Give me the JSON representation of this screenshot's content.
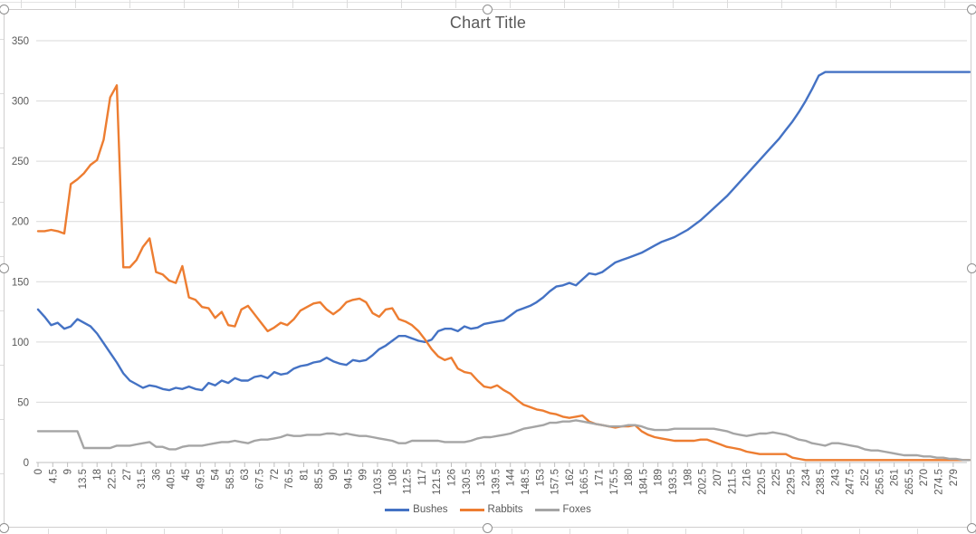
{
  "chart_data": {
    "type": "line",
    "title": "Chart Title",
    "x_start": 0,
    "x_step": 2,
    "x_tick_labels": [
      "0",
      "4.5",
      "9",
      "13.5",
      "18",
      "22.5",
      "27",
      "31.5",
      "36",
      "40.5",
      "45",
      "49.5",
      "54",
      "58.5",
      "63",
      "67.5",
      "72",
      "76.5",
      "81",
      "85.5",
      "90",
      "94.5",
      "99",
      "103.5",
      "108",
      "112.5",
      "117",
      "121.5",
      "126",
      "130.5",
      "135",
      "139.5",
      "144",
      "148.5",
      "153",
      "157.5",
      "162",
      "166.5",
      "171",
      "175.5",
      "180",
      "184.5",
      "189",
      "193.5",
      "198",
      "202.5",
      "207",
      "211.5",
      "216",
      "220.5",
      "225",
      "229.5",
      "234",
      "238.5",
      "243",
      "247.5",
      "252",
      "256.5",
      "261",
      "265.5",
      "270",
      "274.5",
      "279"
    ],
    "y_ticks": [
      0,
      50,
      100,
      150,
      200,
      250,
      300,
      350
    ],
    "ylim": [
      0,
      350
    ],
    "grid": true,
    "legend_position": "bottom",
    "series": [
      {
        "name": "Bushes",
        "color": "#4472C4",
        "values": [
          127,
          121,
          114,
          116,
          111,
          113,
          119,
          116,
          113,
          107,
          99,
          91,
          83,
          74,
          68,
          65,
          62,
          64,
          63,
          61,
          60,
          62,
          61,
          63,
          61,
          60,
          66,
          64,
          68,
          66,
          70,
          68,
          68,
          71,
          72,
          70,
          75,
          73,
          74,
          78,
          80,
          81,
          83,
          84,
          87,
          84,
          82,
          81,
          85,
          84,
          85,
          89,
          94,
          97,
          101,
          105,
          105,
          103,
          101,
          100,
          102,
          109,
          111,
          111,
          109,
          113,
          111,
          112,
          115,
          116,
          117,
          118,
          122,
          126,
          128,
          130,
          133,
          137,
          142,
          146,
          147,
          149,
          147,
          152,
          157,
          156,
          158,
          162,
          166,
          168,
          170,
          172,
          174,
          177,
          180,
          183,
          185,
          187,
          190,
          193,
          197,
          201,
          206,
          211,
          216,
          221,
          227,
          233,
          239,
          245,
          251,
          257,
          263,
          269,
          276,
          283,
          291,
          300,
          310,
          321,
          324,
          324,
          324,
          324,
          324,
          324,
          324,
          324,
          324,
          324,
          324,
          324,
          324,
          324,
          324,
          324,
          324,
          324,
          324,
          324,
          324,
          324,
          324
        ]
      },
      {
        "name": "Rabbits",
        "color": "#ED7D31",
        "values": [
          192,
          192,
          193,
          192,
          190,
          231,
          235,
          240,
          247,
          251,
          268,
          303,
          313,
          162,
          162,
          168,
          179,
          186,
          158,
          156,
          151,
          149,
          163,
          137,
          135,
          129,
          128,
          120,
          125,
          114,
          113,
          127,
          130,
          123,
          116,
          109,
          112,
          116,
          114,
          119,
          126,
          129,
          132,
          133,
          127,
          123,
          127,
          133,
          135,
          136,
          133,
          124,
          121,
          127,
          128,
          119,
          117,
          114,
          109,
          102,
          94,
          88,
          85,
          87,
          78,
          75,
          74,
          68,
          63,
          62,
          64,
          60,
          57,
          52,
          48,
          46,
          44,
          43,
          41,
          40,
          38,
          37,
          38,
          39,
          34,
          32,
          31,
          30,
          29,
          30,
          30,
          31,
          26,
          23,
          21,
          20,
          19,
          18,
          18,
          18,
          18,
          19,
          19,
          17,
          15,
          13,
          12,
          11,
          9,
          8,
          7,
          7,
          7,
          7,
          7,
          4,
          3,
          2,
          2,
          2,
          2,
          2,
          2,
          2,
          2,
          2,
          2,
          2,
          2,
          2,
          2,
          2,
          2,
          2,
          2,
          2,
          2,
          2,
          2,
          2,
          2,
          2,
          2
        ]
      },
      {
        "name": "Foxes",
        "color": "#A5A5A5",
        "values": [
          26,
          26,
          26,
          26,
          26,
          26,
          26,
          12,
          12,
          12,
          12,
          12,
          14,
          14,
          14,
          15,
          16,
          17,
          13,
          13,
          11,
          11,
          13,
          14,
          14,
          14,
          15,
          16,
          17,
          17,
          18,
          17,
          16,
          18,
          19,
          19,
          20,
          21,
          23,
          22,
          22,
          23,
          23,
          23,
          24,
          24,
          23,
          24,
          23,
          22,
          22,
          21,
          20,
          19,
          18,
          16,
          16,
          18,
          18,
          18,
          18,
          18,
          17,
          17,
          17,
          17,
          18,
          20,
          21,
          21,
          22,
          23,
          24,
          26,
          28,
          29,
          30,
          31,
          33,
          33,
          34,
          34,
          35,
          34,
          33,
          32,
          31,
          30,
          30,
          30,
          31,
          31,
          30,
          28,
          27,
          27,
          27,
          28,
          28,
          28,
          28,
          28,
          28,
          28,
          27,
          26,
          24,
          23,
          22,
          23,
          24,
          24,
          25,
          24,
          23,
          21,
          19,
          18,
          16,
          15,
          14,
          16,
          16,
          15,
          14,
          13,
          11,
          10,
          10,
          9,
          8,
          7,
          6,
          6,
          6,
          5,
          5,
          4,
          4,
          3,
          3,
          2,
          2
        ]
      }
    ]
  },
  "colors": {
    "grid": "#D9D9D9",
    "axis": "#BFBFBF",
    "text": "#595959",
    "chart_border": "#D0CECE",
    "handle_border": "#8F8F8F"
  }
}
